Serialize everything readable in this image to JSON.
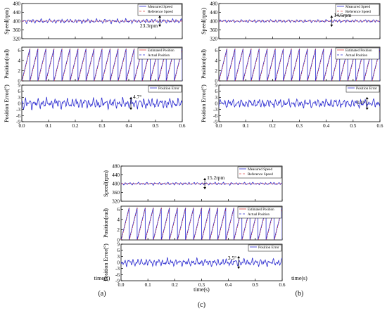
{
  "colors": {
    "measured": "#2b2bd0",
    "reference": "#e05555",
    "estimated": "#d44040",
    "actual": "#2b2bd0",
    "error": "#2b2bd0",
    "frame": "#000000"
  },
  "chart_data": [
    {
      "type": "line",
      "label": "(a)",
      "xlabel": "time(s)",
      "xlim": [
        0,
        0.6
      ],
      "xticks": [
        "0.0",
        "0.1",
        "0.2",
        "0.3",
        "0.4",
        "0.5",
        "0.6"
      ],
      "panels": [
        {
          "ylabel": "Speed(rpm)",
          "ylim": [
            320,
            480
          ],
          "yticks": [
            "320",
            "360",
            "400",
            "440",
            "480"
          ],
          "series": [
            {
              "name": "Measured Speed",
              "center": 400,
              "ripple": 11.65
            },
            {
              "name": "Reference Speed",
              "constant": 400
            }
          ],
          "annotation": "23.3rpm"
        },
        {
          "ylabel": "Position(rad)",
          "ylim": [
            0,
            6.6
          ],
          "yticks": [
            "0",
            "2",
            "4",
            "6"
          ],
          "series": [
            {
              "name": "Estimated Position",
              "sawtooth_max": 6.28,
              "cycles": 20
            },
            {
              "name": "Actual Position",
              "sawtooth_max": 6.28,
              "cycles": 20
            }
          ]
        },
        {
          "ylabel": "Position Error(°)",
          "ylim": [
            -9,
            9
          ],
          "yticks": [
            "-9",
            "-6",
            "-3",
            "0",
            "3",
            "6",
            "9"
          ],
          "series": [
            {
              "name": "Position Error",
              "center": 0,
              "ripple": 2.35
            }
          ],
          "annotation": "4.7°"
        }
      ]
    },
    {
      "type": "line",
      "label": "(b)",
      "xlabel": "time(s)",
      "xlim": [
        0,
        0.6
      ],
      "xticks": [
        "0.0",
        "0.1",
        "0.2",
        "0.3",
        "0.4",
        "0.5",
        "0.6"
      ],
      "panels": [
        {
          "ylabel": "Speed(rpm)",
          "ylim": [
            320,
            480
          ],
          "yticks": [
            "320",
            "360",
            "400",
            "440",
            "480"
          ],
          "series": [
            {
              "name": "Measured Speed",
              "center": 400,
              "ripple": 7.3
            },
            {
              "name": "Reference Speed",
              "constant": 400
            }
          ],
          "annotation": "14.6rpm"
        },
        {
          "ylabel": "Position(rad)",
          "ylim": [
            0,
            6.6
          ],
          "yticks": [
            "0",
            "2",
            "4",
            "6"
          ],
          "series": [
            {
              "name": "Estimated Position",
              "sawtooth_max": 6.28,
              "cycles": 20
            },
            {
              "name": "Actual Position",
              "sawtooth_max": 6.28,
              "cycles": 20
            }
          ]
        },
        {
          "ylabel": "Position Error(°)",
          "ylim": [
            -9,
            9
          ],
          "yticks": [
            "-9",
            "-6",
            "-3",
            "0",
            "3",
            "6",
            "9"
          ],
          "series": [
            {
              "name": "Position Error",
              "center": 0,
              "ripple": 1.7
            }
          ],
          "annotation": "3.4°"
        }
      ]
    },
    {
      "type": "line",
      "label": "(c)",
      "xlabel": "time(s)",
      "xlim": [
        0,
        0.6
      ],
      "xticks": [
        "0.0",
        "0.1",
        "0.2",
        "0.3",
        "0.4",
        "0.5",
        "0.6"
      ],
      "panels": [
        {
          "ylabel": "Speed(rpm)",
          "ylim": [
            320,
            480
          ],
          "yticks": [
            "320",
            "360",
            "400",
            "440",
            "480"
          ],
          "series": [
            {
              "name": "Measured Speed",
              "center": 400,
              "ripple": 7.6
            },
            {
              "name": "Reference Speed",
              "constant": 400
            }
          ],
          "annotation": "15.2rpm"
        },
        {
          "ylabel": "Position(rad)",
          "ylim": [
            0,
            6.6
          ],
          "yticks": [
            "0",
            "2",
            "4",
            "6"
          ],
          "series": [
            {
              "name": "Estimated Position",
              "sawtooth_max": 6.28,
              "cycles": 20
            },
            {
              "name": "Actual Position",
              "sawtooth_max": 6.28,
              "cycles": 20
            }
          ]
        },
        {
          "ylabel": "Position Error(°)",
          "ylim": [
            -9,
            9
          ],
          "yticks": [
            "-9",
            "-6",
            "-3",
            "0",
            "3",
            "6",
            "9"
          ],
          "series": [
            {
              "name": "Position Error",
              "center": 0,
              "ripple": 1.75
            }
          ],
          "annotation": "3.5°"
        }
      ]
    }
  ]
}
